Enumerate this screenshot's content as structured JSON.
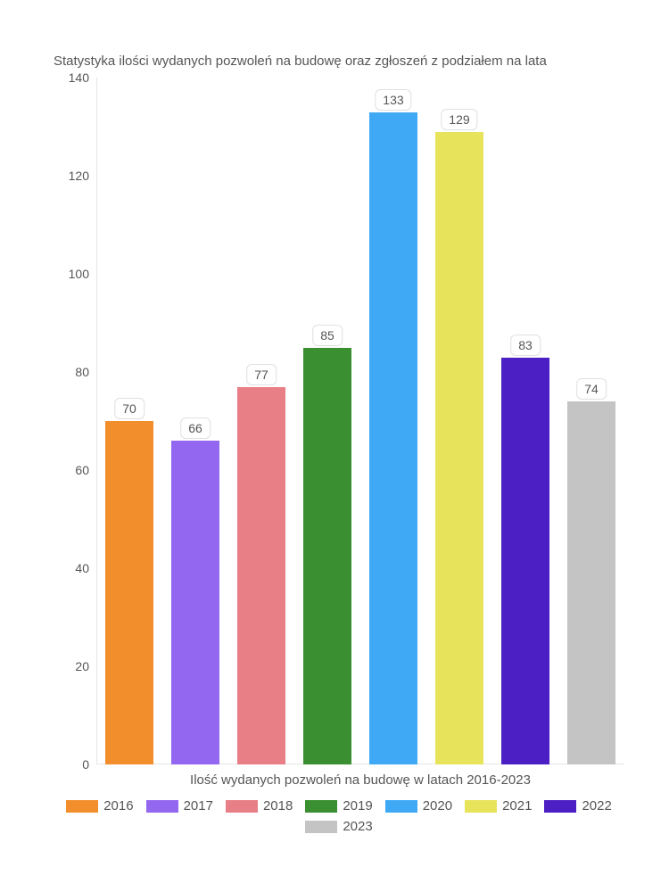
{
  "chart": {
    "type": "bar",
    "title": "Statystyka ilości wydanych pozwoleń na budowę oraz zgłoszeń z podziałem na lata",
    "title_fontsize": 15,
    "title_color": "#555555",
    "xlabel": "Ilość wydanych pozwoleń na budowę w latach 2016-2023",
    "label_fontsize": 15,
    "background_color": "#ffffff",
    "axis_line_color": "#e6e6e6",
    "ylim": [
      0,
      140
    ],
    "ytick_step": 20,
    "yticks": [
      0,
      20,
      40,
      60,
      80,
      100,
      120,
      140
    ],
    "tick_fontsize": 14,
    "tick_color": "#555555",
    "bar_width": 0.73,
    "bar_gap": 0.27,
    "value_label_bg": "#ffffff",
    "value_label_border": "#e0e0e0",
    "value_label_radius": 6,
    "categories": [
      "2016",
      "2017",
      "2018",
      "2019",
      "2020",
      "2021",
      "2022",
      "2023"
    ],
    "values": [
      70,
      66,
      77,
      85,
      133,
      129,
      83,
      74
    ],
    "bar_colors": [
      "#f28e2b",
      "#9467f0",
      "#e87e86",
      "#3a8f30",
      "#3fa9f5",
      "#e7e35b",
      "#4b1fc4",
      "#c4c4c4"
    ],
    "legend_swatch_w": 36,
    "legend_swatch_h": 14
  }
}
